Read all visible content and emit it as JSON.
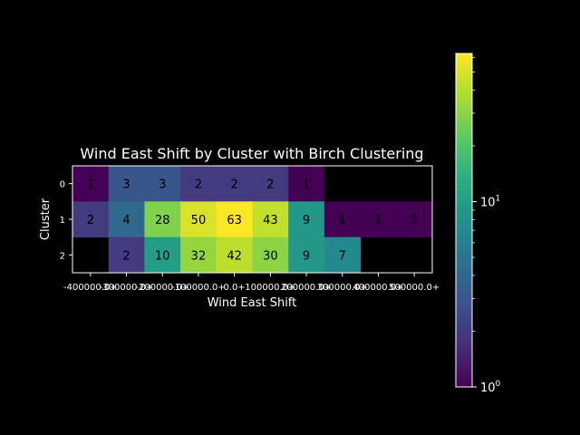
{
  "chart_data": {
    "type": "heatmap",
    "title": "Wind East Shift by Cluster with Birch Clustering",
    "xlabel": "Wind East Shift",
    "ylabel": "Cluster",
    "x_ticks": [
      "-400000.0+",
      "-300000.0+",
      "-200000.0+",
      "-100000.0+",
      "0.0+",
      "100000.0+",
      "200000.0+",
      "300000.0+",
      "400000.0+",
      "500000.0+"
    ],
    "y_ticks": [
      "0",
      "1",
      "2"
    ],
    "matrix": [
      [
        1,
        3,
        3,
        2,
        2,
        2,
        1,
        null,
        null,
        null
      ],
      [
        2,
        4,
        28,
        50,
        63,
        43,
        9,
        1,
        1,
        1
      ],
      [
        null,
        2,
        10,
        32,
        42,
        30,
        9,
        7,
        null,
        null
      ]
    ],
    "colorbar": {
      "scale": "log",
      "range": [
        1,
        63
      ],
      "colormap": "viridis",
      "ticks": [
        {
          "base": "10",
          "exp": "0",
          "value": 1
        },
        {
          "base": "10",
          "exp": "1",
          "value": 10
        }
      ]
    },
    "grid": false,
    "background": "#000000"
  }
}
